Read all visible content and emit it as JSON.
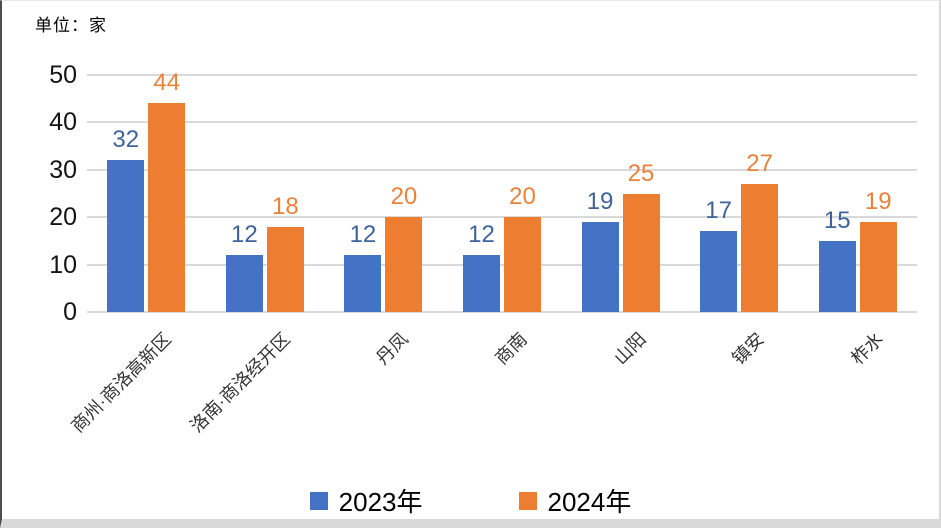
{
  "chart_data": {
    "type": "bar",
    "unit_label": "单位：家",
    "categories": [
      "商州·商洛高新区",
      "洛南·商洛经开区",
      "丹凤",
      "商南",
      "山阳",
      "镇安",
      "柞水"
    ],
    "series": [
      {
        "name": "2023年",
        "color": "#4472C4",
        "label_color": "#3E639C",
        "values": [
          32,
          12,
          12,
          12,
          19,
          17,
          15
        ]
      },
      {
        "name": "2024年",
        "color": "#ED7D31",
        "label_color": "#E8823D",
        "values": [
          44,
          18,
          20,
          20,
          25,
          27,
          19
        ]
      }
    ],
    "ylim": [
      0,
      50
    ],
    "yticks": [
      0,
      10,
      20,
      30,
      40,
      50
    ],
    "grid": "horizontal",
    "gridline_color": "#D9D9D9",
    "axis_text_color": "#141414",
    "legend_position": "bottom",
    "data_labels": true
  }
}
